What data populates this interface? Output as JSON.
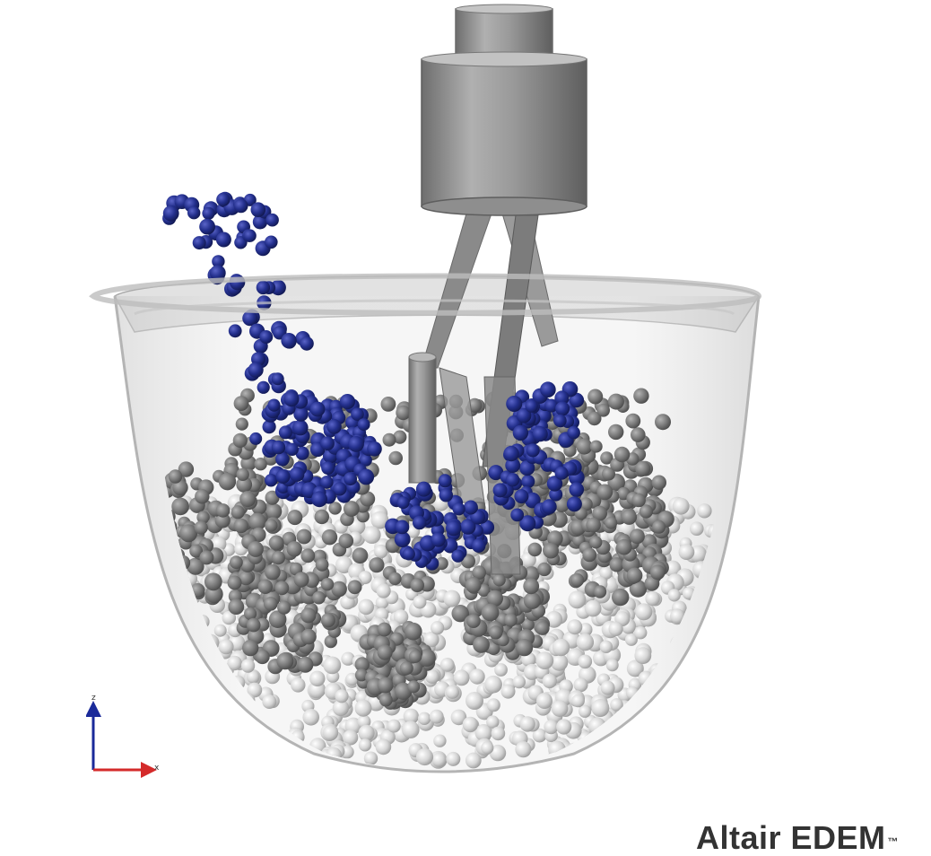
{
  "brand": {
    "name": "Altair EDEM",
    "trademark": "™"
  },
  "axes": {
    "z_label": "z",
    "x_label": "x",
    "z_color": "#1a2a9a",
    "x_color": "#d42a2a"
  },
  "colors": {
    "tracer_particle": "#232f8c",
    "bulk_particle_light": "#e2e2e2",
    "bulk_particle_dark": "#7a7a7a",
    "impeller": "#8c8c8c",
    "bowl": "#d8d8d8"
  }
}
